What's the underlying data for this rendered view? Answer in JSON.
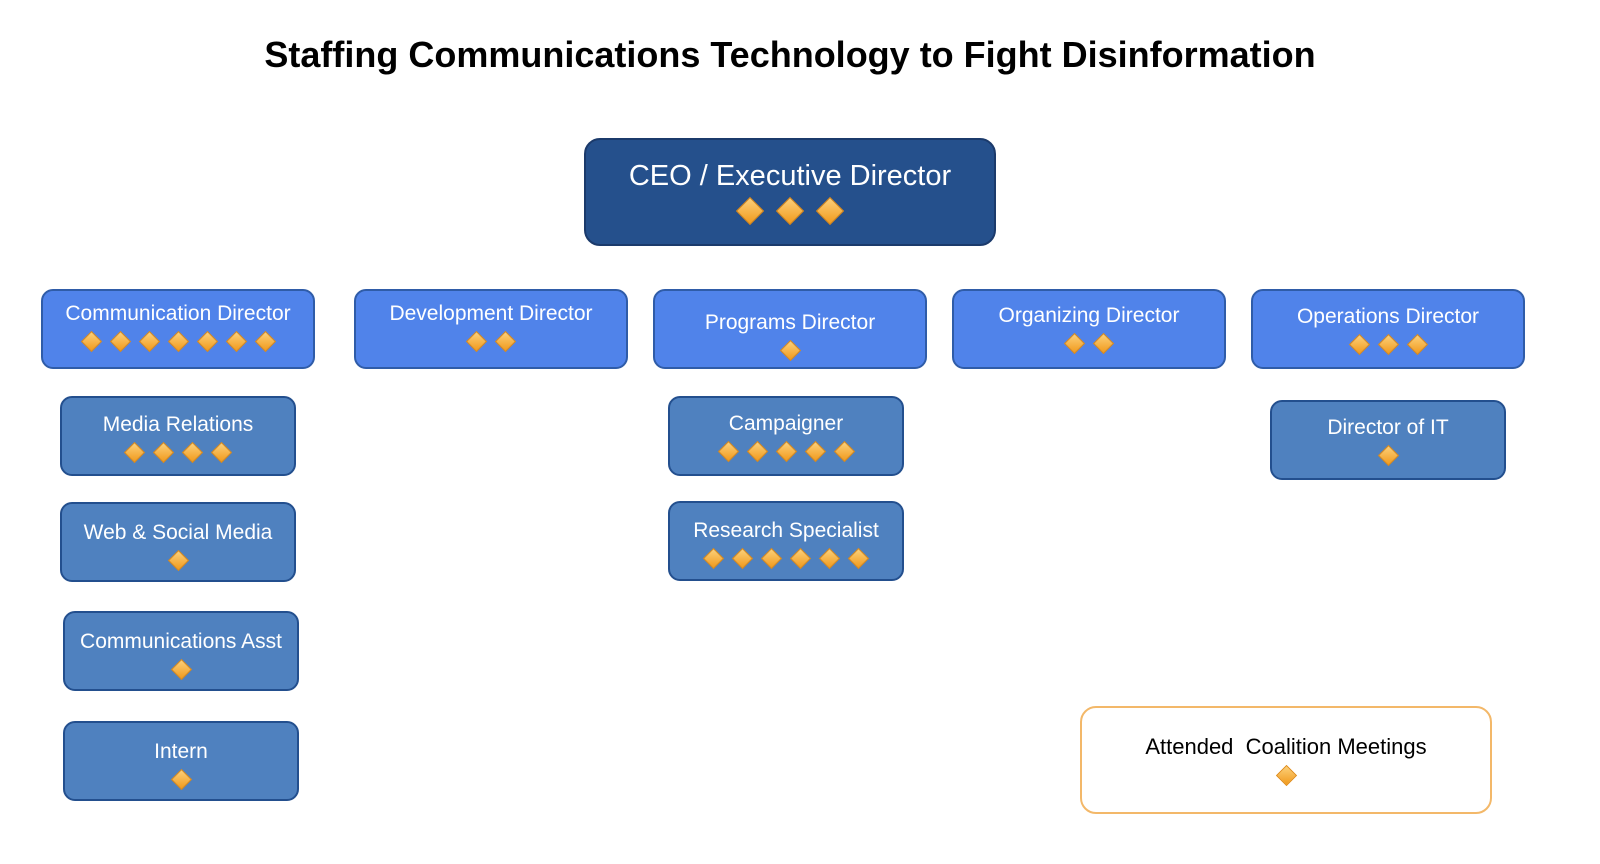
{
  "title": "Staffing Communications Technology to Fight Disinformation",
  "colors": {
    "ceo": "#25508c",
    "director": "#5083ea",
    "staff": "#4f81bf",
    "diamond": "#f5a623",
    "legend_border": "#f3b869"
  },
  "marker_icon": "orange-diamond",
  "ceo": {
    "label": "CEO / Executive Director",
    "meetings": 3
  },
  "directors": [
    {
      "label": "Communication Director",
      "meetings": 7
    },
    {
      "label": "Development Director",
      "meetings": 2
    },
    {
      "label": "Programs Director",
      "meetings": 1
    },
    {
      "label": "Organizing Director",
      "meetings": 2
    },
    {
      "label": "Operations Director",
      "meetings": 3
    }
  ],
  "communications_staff": [
    {
      "label": "Media Relations",
      "meetings": 4
    },
    {
      "label": "Web & Social Media",
      "meetings": 1
    },
    {
      "label": "Communications Asst",
      "meetings": 1
    },
    {
      "label": "Intern",
      "meetings": 1
    }
  ],
  "programs_staff": [
    {
      "label": "Campaigner",
      "meetings": 5
    },
    {
      "label": "Research Specialist",
      "meetings": 6
    }
  ],
  "operations_staff": [
    {
      "label": "Director of IT",
      "meetings": 1
    }
  ],
  "legend": {
    "label": "Attended  Coalition Meetings",
    "meetings": 1
  }
}
